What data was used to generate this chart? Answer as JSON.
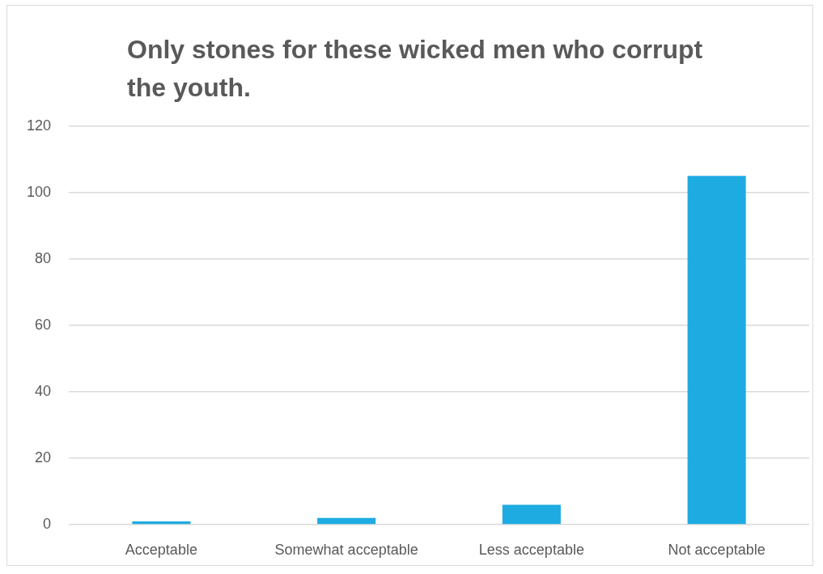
{
  "chart_data": {
    "type": "bar",
    "title": "Only stones for these wicked men who corrupt the youth.",
    "categories": [
      "Acceptable",
      "Somewhat acceptable",
      "Less acceptable",
      "Not acceptable"
    ],
    "values": [
      1,
      2,
      6,
      105
    ],
    "color": "#1eabe2",
    "ylim": [
      0,
      120
    ],
    "yticks": [
      0,
      20,
      40,
      60,
      80,
      100,
      120
    ],
    "grid": "y"
  }
}
